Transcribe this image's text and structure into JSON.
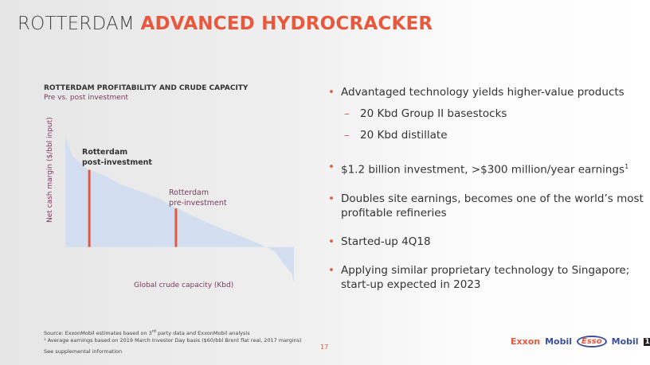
{
  "slide": {
    "title_plain": "ROTTERDAM",
    "title_accent": "ADVANCED HYDROCRACKER",
    "page_number": "17"
  },
  "chart_data": {
    "type": "area",
    "title": "ROTTERDAM PROFITABILITY AND CRUDE CAPACITY",
    "subtitle": "Pre vs. post investment",
    "xlabel": "Global crude capacity (Kbd)",
    "ylabel": "Net cash margin ($/bbl input)",
    "x": [
      0,
      3,
      10,
      17,
      24,
      32,
      41,
      49,
      58,
      69,
      79,
      89,
      92,
      95,
      99,
      100
    ],
    "values": [
      100,
      83,
      70,
      65,
      57,
      51,
      44,
      35,
      26,
      16,
      8,
      -1,
      -5,
      -14,
      -24,
      -32
    ],
    "ylim": [
      -32,
      100
    ],
    "xlim": [
      0,
      100
    ],
    "grid": false,
    "fill_color": "#d3dff0",
    "marker_color": "#e8583c",
    "markers": [
      {
        "label_line1": "Rotterdam",
        "label_line2": "post-investment",
        "x": 10.5,
        "value": 70
      },
      {
        "label_line1": "Rotterdam",
        "label_line2": "pre-investment",
        "x": 48.4,
        "value": 35
      }
    ]
  },
  "bullets": [
    {
      "text": "Advantaged technology yields higher-value products",
      "subs": [
        "20 Kbd Group II basestocks",
        "20 Kbd distillate"
      ]
    },
    {
      "text": "$1.2 billion investment, >$300 million/year earnings",
      "sup": "1"
    },
    {
      "text": "Doubles site earnings, becomes one of the world’s most profitable refineries"
    },
    {
      "text": "Started-up 4Q18"
    },
    {
      "text": "Applying similar proprietary technology to Singapore; start-up expected in 2023"
    }
  ],
  "footer": {
    "source_pre": "Source: ExxonMobil estimates based on 3",
    "source_sup": "rd",
    "source_post": " party data and ExxonMobil analysis",
    "note": "¹ Average earnings based on 2019 March Investor Day basis ($60/bbl Brent flat real, 2017 margins)",
    "supplemental": "See supplemental information"
  },
  "logos": {
    "exxon": "Exxon",
    "mobil": "Mobil",
    "esso": "Esso",
    "mobil1": "Mobil",
    "mobil1_num": "1"
  }
}
